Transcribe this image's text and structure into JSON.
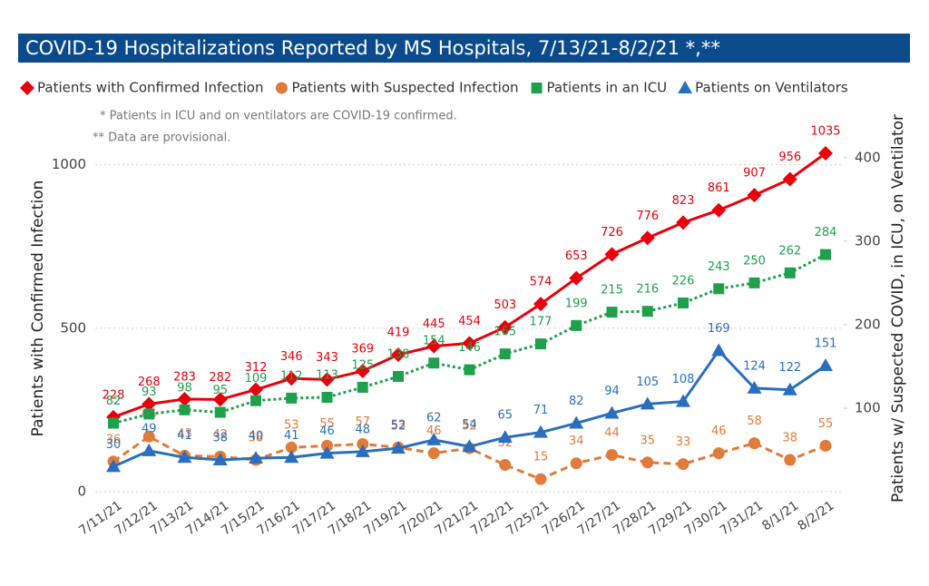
{
  "chart_data": {
    "type": "line",
    "title": "COVID-19 Hospitalizations Reported by MS Hospitals, 7/13/21-8/2/21 *,**",
    "annotations": [
      "* Patients in ICU and on ventilators are COVID-19 confirmed.",
      "** Data are provisional."
    ],
    "y_label": "Patients with Confirmed Infection",
    "y2_label": "Patients w/ Suspected COVID, in ICU, on Ventilator",
    "categories": [
      "7/11/21",
      "7/12/21",
      "7/13/21",
      "7/14/21",
      "7/15/21",
      "7/16/21",
      "7/17/21",
      "7/18/21",
      "7/19/21",
      "7/20/21",
      "7/21/21",
      "7/22/21",
      "7/25/21",
      "7/26/21",
      "7/27/21",
      "7/28/21",
      "7/29/21",
      "7/30/21",
      "7/31/21",
      "8/1/21",
      "8/2/21"
    ],
    "ylim": [
      0,
      1060
    ],
    "yticks": [
      0,
      500,
      1000
    ],
    "y2lim": [
      0,
      415
    ],
    "y2ticks": [
      100,
      200,
      300,
      400
    ],
    "grid": true,
    "series": [
      {
        "name": "Patients with Confirmed Infection",
        "color": "#e8000b",
        "marker": "diamond",
        "line_style": "solid",
        "values": [
          228,
          268,
          283,
          282,
          312,
          346,
          343,
          369,
          419,
          445,
          454,
          503,
          574,
          653,
          726,
          776,
          823,
          861,
          907,
          956,
          1035
        ]
      },
      {
        "name": "Patients with Suspected Infection",
        "color": "#e07b39",
        "marker": "circle",
        "line_style": "dashed",
        "axis": "y2",
        "values": [
          36,
          66,
          43,
          42,
          38,
          53,
          55,
          57,
          53,
          46,
          52,
          32,
          15,
          34,
          44,
          35,
          33,
          46,
          58,
          38,
          55
        ]
      },
      {
        "name": "Patients in an ICU",
        "color": "#1fa04d",
        "marker": "square",
        "line_style": "dotted",
        "axis": "y2",
        "values": [
          82,
          93,
          98,
          95,
          109,
          112,
          113,
          125,
          138,
          154,
          146,
          165,
          177,
          199,
          215,
          216,
          226,
          243,
          250,
          262,
          284
        ]
      },
      {
        "name": "Patients on Ventilators",
        "color": "#2a6fbd",
        "marker": "triangle",
        "line_style": "solid",
        "axis": "y2",
        "values": [
          30,
          49,
          41,
          38,
          40,
          41,
          46,
          48,
          52,
          62,
          54,
          65,
          71,
          82,
          94,
          105,
          108,
          169,
          124,
          122,
          151
        ]
      }
    ]
  }
}
